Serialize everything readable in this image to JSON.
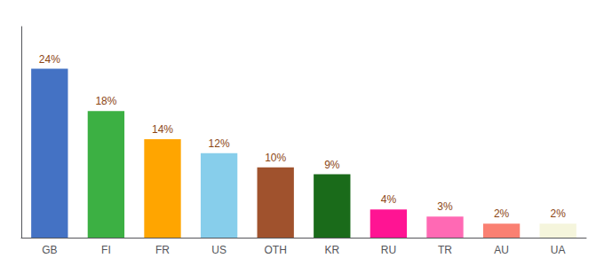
{
  "chart_data": {
    "type": "bar",
    "categories": [
      "GB",
      "FI",
      "FR",
      "US",
      "OTH",
      "KR",
      "RU",
      "TR",
      "AU",
      "UA"
    ],
    "values": [
      24,
      18,
      14,
      12,
      10,
      9,
      4,
      3,
      2,
      2
    ],
    "value_labels": [
      "24%",
      "18%",
      "14%",
      "12%",
      "10%",
      "9%",
      "4%",
      "3%",
      "2%",
      "2%"
    ],
    "colors": [
      "#4472C4",
      "#3CB043",
      "#FFA500",
      "#87CEEB",
      "#A0522D",
      "#1A6B1A",
      "#FF1493",
      "#FF69B4",
      "#FA8072",
      "#F5F5DC"
    ],
    "ylim": [
      0,
      30
    ],
    "data_labels": true,
    "tick_labels": "x",
    "grid": false
  }
}
